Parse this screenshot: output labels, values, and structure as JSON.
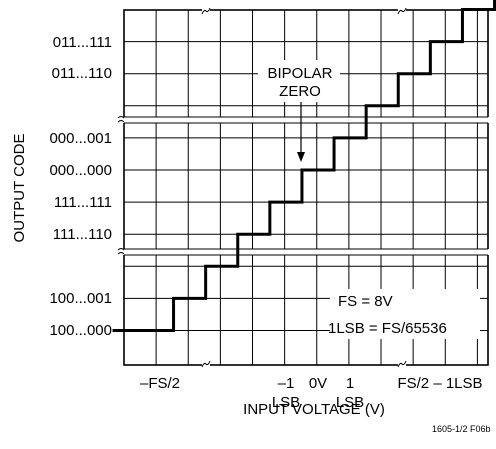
{
  "chart_data": {
    "type": "line",
    "step": true,
    "xlabel": "INPUT VOLTAGE (V)",
    "ylabel": "OUTPUT CODE",
    "grid": true,
    "x_tick_labels": [
      {
        "line1": "–FS/2",
        "line2": ""
      },
      {
        "line1": "–1",
        "line2": "LSB"
      },
      {
        "line1": "0V",
        "line2": ""
      },
      {
        "line1": "1",
        "line2": "LSB"
      },
      {
        "line1": "FS/2 – 1LSB",
        "line2": ""
      }
    ],
    "y_tick_labels": [
      "011...111",
      "011...110",
      "000...001",
      "000...000",
      "111...111",
      "111...110",
      "100...001",
      "100...000"
    ],
    "series": [
      {
        "x": [
          -5.5,
          -4.5,
          -3.5,
          -2.5,
          -1.5,
          -0.5,
          0.5,
          1.5,
          2.5,
          3.5,
          4.5,
          5.5
        ],
        "y": [
          0,
          1,
          2,
          3,
          4,
          5,
          6,
          7,
          8,
          9,
          10,
          11
        ]
      }
    ],
    "annotations": {
      "bipolar_zero": "BIPOLAR ZERO",
      "fs": "FS = 8V",
      "lsb": "1LSB = FS/65536"
    },
    "figure_id": "1605-1/2 F06b"
  }
}
